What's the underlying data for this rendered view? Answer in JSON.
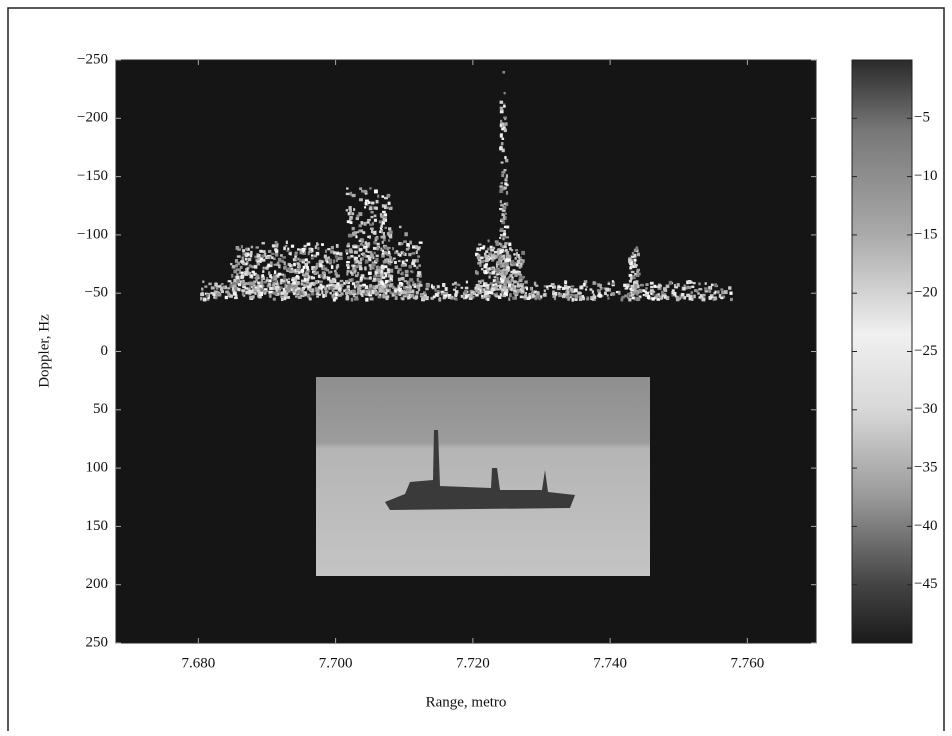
{
  "chart_data": {
    "type": "heatmap",
    "xlabel": "Range, metro",
    "ylabel": "Doppler, Hz",
    "xlim": [
      7.668,
      7.77
    ],
    "xticks": [
      {
        "value": 7.68,
        "label": "7.680"
      },
      {
        "value": 7.7,
        "label": "7.700"
      },
      {
        "value": 7.72,
        "label": "7.720"
      },
      {
        "value": 7.74,
        "label": "7.740"
      },
      {
        "value": 7.76,
        "label": "7.760"
      }
    ],
    "ylim": [
      -250,
      250
    ],
    "y_inverted": true,
    "yticks": [
      {
        "value": -250,
        "label": "−250"
      },
      {
        "value": -200,
        "label": "−200"
      },
      {
        "value": -150,
        "label": "−150"
      },
      {
        "value": -100,
        "label": "−100"
      },
      {
        "value": -50,
        "label": "−50"
      },
      0,
      50,
      100,
      150,
      200,
      250
    ],
    "clim": [
      -50,
      0
    ],
    "cticks": [
      {
        "value": -5,
        "label": "−5"
      },
      {
        "value": -10,
        "label": "−10"
      },
      {
        "value": -15,
        "label": "−15"
      },
      {
        "value": -20,
        "label": "−20"
      },
      {
        "value": -25,
        "label": "−25"
      },
      {
        "value": -30,
        "label": "−30"
      },
      {
        "value": -35,
        "label": "−35"
      },
      {
        "value": -40,
        "label": "−40"
      },
      {
        "value": -45,
        "label": "−45"
      }
    ]
  }
}
